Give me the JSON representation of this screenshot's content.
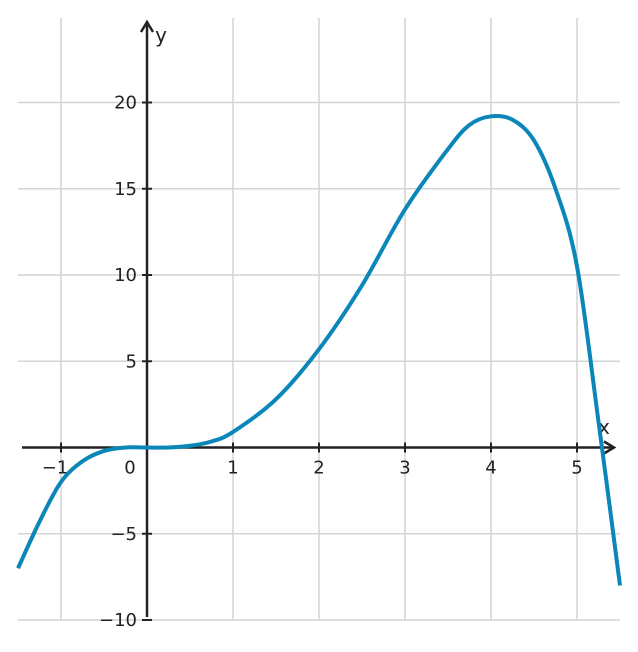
{
  "chart_data": {
    "type": "line",
    "x_label": "x",
    "y_label": "y",
    "xlim": [
      -1.5,
      5.5
    ],
    "ylim": [
      -10,
      24.9
    ],
    "xticks": [
      {
        "value": -1,
        "label": "−1"
      },
      0,
      1,
      2,
      3,
      4,
      5
    ],
    "yticks": [
      {
        "value": -10,
        "label": "−10"
      },
      {
        "value": -5,
        "label": "−5"
      },
      5,
      10,
      15,
      20
    ],
    "grid": true,
    "series": [
      {
        "color": "#0a86b8",
        "x": [
          -1.5,
          -1.25,
          -1,
          -0.75,
          -0.5,
          -0.25,
          0,
          0.25,
          0.5,
          0.75,
          1,
          1.5,
          2,
          2.5,
          3,
          3.5,
          3.75,
          4,
          4.25,
          4.5,
          4.75,
          5,
          5.25,
          5.5
        ],
        "values": [
          -7,
          -4.3,
          -2,
          -0.8,
          -0.2,
          0,
          0,
          0,
          0.1,
          0.35,
          0.9,
          2.8,
          5.7,
          9.4,
          13.8,
          17.3,
          18.7,
          19.2,
          19.0,
          17.8,
          15.0,
          10.5,
          1.5,
          -8
        ]
      }
    ]
  }
}
